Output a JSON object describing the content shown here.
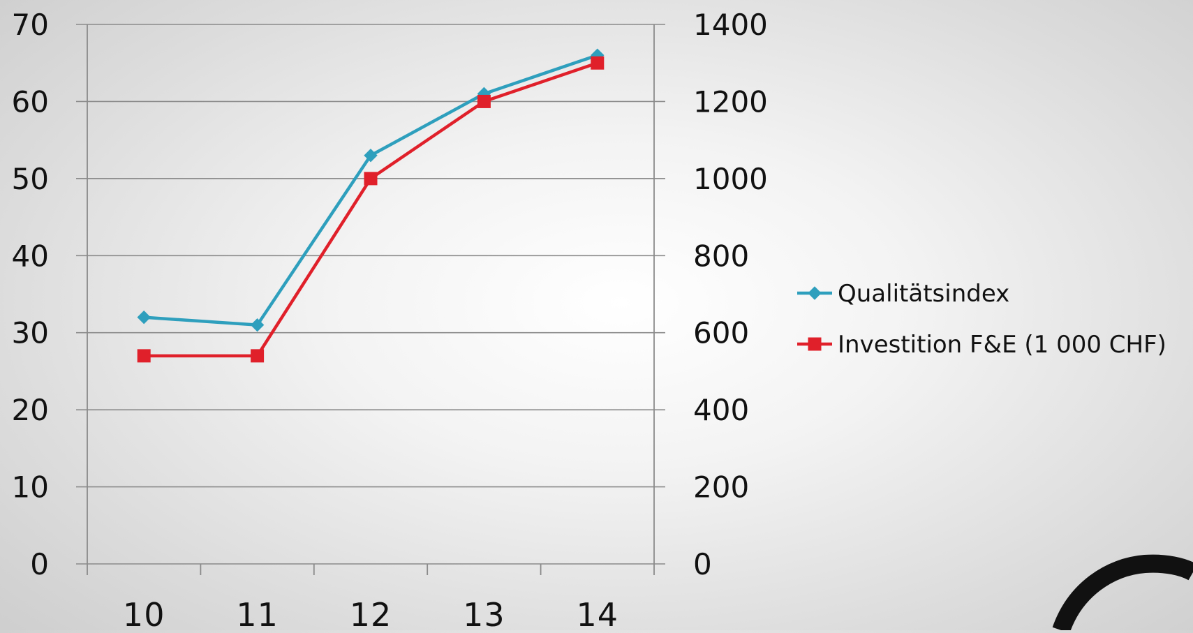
{
  "chart_data": {
    "type": "line",
    "categories": [
      "10",
      "11",
      "12",
      "13",
      "14"
    ],
    "series": [
      {
        "name": "Qualitätsindex",
        "axis": "left",
        "color": "#2e9fbd",
        "marker": "diamond",
        "values": [
          32,
          31,
          53,
          61,
          66
        ]
      },
      {
        "name": "Investition F&E (1 000 CHF)",
        "axis": "right",
        "color": "#e0202a",
        "marker": "square",
        "values": [
          540,
          540,
          1000,
          1200,
          1300
        ]
      }
    ],
    "y_left": {
      "ticks": [
        "0",
        "10",
        "20",
        "30",
        "40",
        "50",
        "60",
        "70"
      ],
      "range": [
        0,
        70
      ]
    },
    "y_right": {
      "ticks": [
        "0",
        "200",
        "400",
        "600",
        "800",
        "1000",
        "1200",
        "1400"
      ],
      "range": [
        0,
        1400
      ]
    },
    "grid": true,
    "legend_position": "right"
  }
}
